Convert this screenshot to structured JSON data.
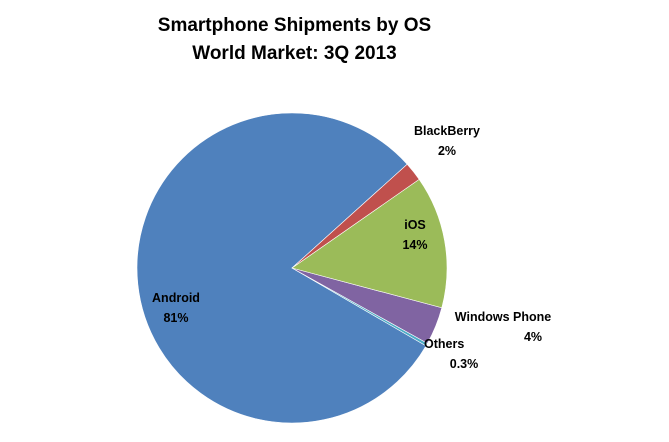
{
  "chart_data": {
    "type": "pie",
    "title": "Smartphone Shipments by OS",
    "subtitle": "World Market: 3Q 2013",
    "slices": [
      {
        "name": "Android",
        "value": 81,
        "label": "81%",
        "color": "#4F81BD"
      },
      {
        "name": "Others",
        "value": 0.3,
        "label": "0.3%",
        "color": "#4BACC6"
      },
      {
        "name": "Windows Phone",
        "value": 4,
        "label": "4%",
        "color": "#8064A2"
      },
      {
        "name": "iOS",
        "value": 14,
        "label": "14%",
        "color": "#9BBB59"
      },
      {
        "name": "BlackBerry",
        "value": 2,
        "label": "2%",
        "color": "#C0504D"
      }
    ],
    "legend": "none"
  }
}
